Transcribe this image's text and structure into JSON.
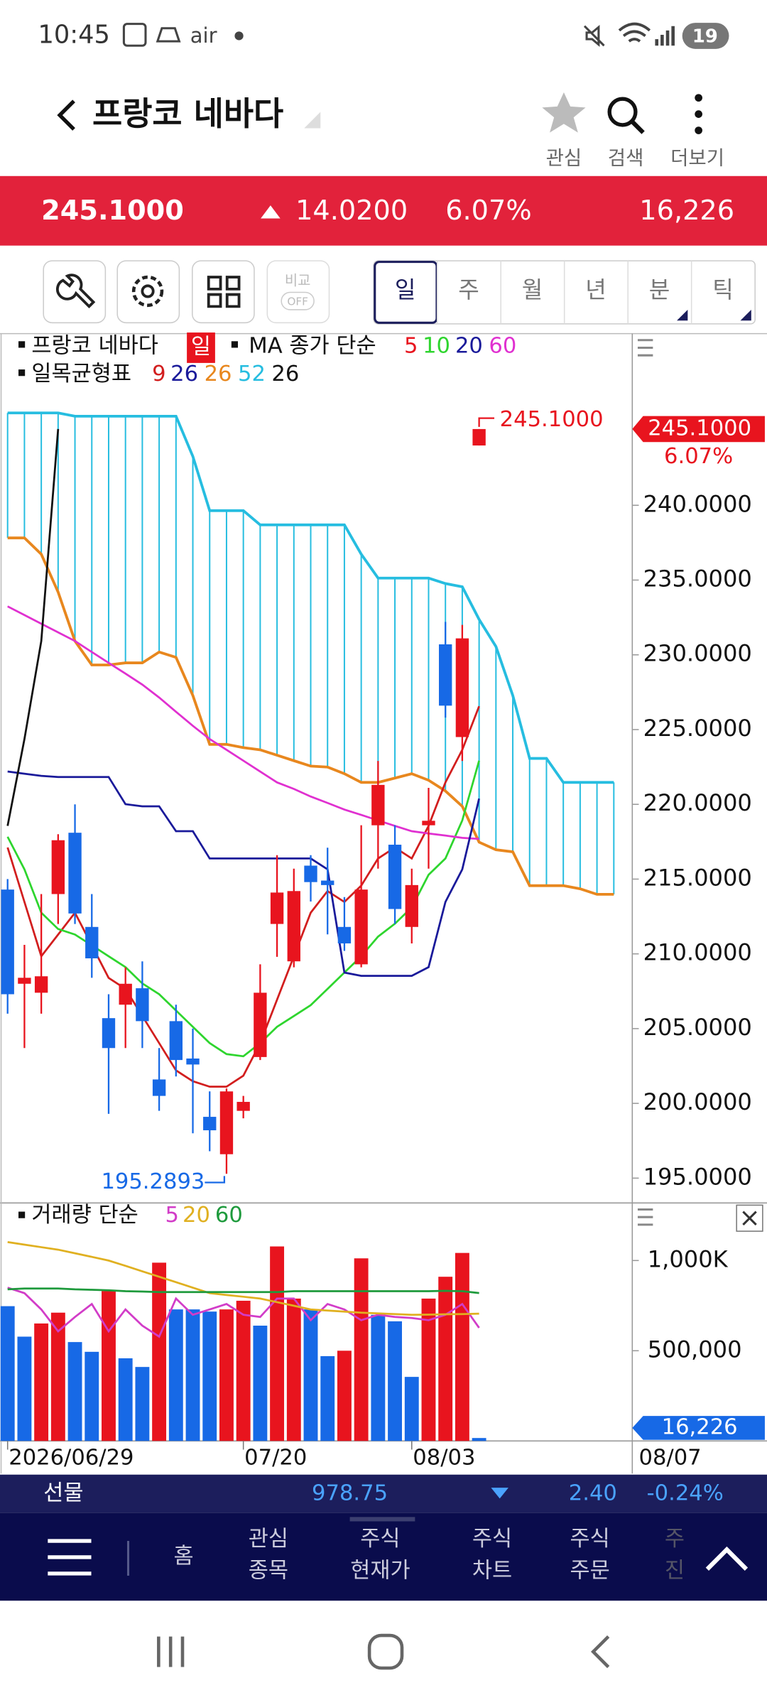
{
  "status": {
    "time": "10:45",
    "carrier": "air",
    "battery": "19"
  },
  "header": {
    "title": "프랑코 네바다",
    "actions": [
      "관심",
      "검색",
      "더보기"
    ]
  },
  "quote": {
    "price": "245.1000",
    "change": "14.0200",
    "change_pct": "6.07%",
    "volume": "16,226"
  },
  "toolbar": {
    "compare": "비교",
    "compare_state": "OFF",
    "periods": [
      "일",
      "주",
      "월",
      "년",
      "분",
      "틱"
    ]
  },
  "legend": {
    "name": "프랑코 네바다",
    "period": "일",
    "ma_label": "MA 종가 단순",
    "ma_periods": [
      "5",
      "10",
      "20",
      "60"
    ],
    "ichimoku_label": "일목균형표",
    "ichimoku_periods": [
      "9",
      "26",
      "26",
      "52",
      "26"
    ],
    "volume_label": "거래량 단순",
    "volume_periods": [
      "5",
      "20",
      "60"
    ]
  },
  "chart_data": {
    "type": "candlestick",
    "categories": [
      "2026/06/29",
      null,
      null,
      null,
      null,
      null,
      null,
      null,
      null,
      null,
      null,
      null,
      null,
      null,
      "07/20",
      null,
      null,
      null,
      null,
      null,
      null,
      null,
      null,
      null,
      "08/03",
      null,
      null,
      null,
      null,
      null,
      null,
      null,
      null,
      null,
      null,
      null,
      null
    ],
    "open": [
      214.3,
      208.0,
      207.4,
      214.0,
      218.1,
      211.8,
      205.7,
      206.6,
      207.7,
      201.6,
      205.5,
      203.0,
      199.1,
      196.6,
      199.5,
      203.1,
      212.0,
      209.5,
      215.9,
      214.9,
      211.8,
      209.3,
      218.6,
      217.3,
      211.8,
      218.6,
      230.7,
      224.5,
      244.0,
      null,
      null,
      null,
      null,
      null,
      null,
      null,
      null
    ],
    "high": [
      215.0,
      210.6,
      214.0,
      218.0,
      220.0,
      214.0,
      207.3,
      209.1,
      209.5,
      203.7,
      206.6,
      205.0,
      200.8,
      201.0,
      200.5,
      209.3,
      216.6,
      215.7,
      216.6,
      217.1,
      213.8,
      218.6,
      222.9,
      218.6,
      215.7,
      221.1,
      232.2,
      232.0,
      245.1,
      null,
      null,
      null,
      null,
      null,
      null,
      null,
      null
    ],
    "low": [
      206.0,
      203.7,
      206.0,
      212.0,
      212.0,
      208.4,
      199.3,
      203.7,
      203.7,
      199.5,
      201.8,
      198.0,
      196.8,
      195.2893,
      199.0,
      202.9,
      209.8,
      209.1,
      213.5,
      211.3,
      210.2,
      209.1,
      215.7,
      212.0,
      210.7,
      215.7,
      225.8,
      222.9,
      244.0,
      null,
      null,
      null,
      null,
      null,
      null,
      null,
      null
    ],
    "close": [
      207.3,
      208.4,
      208.5,
      217.6,
      212.7,
      209.7,
      203.7,
      208.0,
      205.5,
      200.5,
      202.9,
      202.6,
      198.2,
      200.8,
      200.1,
      207.4,
      214.1,
      214.2,
      214.8,
      214.6,
      210.7,
      214.3,
      221.3,
      213.0,
      214.6,
      218.9,
      226.6,
      231.1,
      245.1,
      null,
      null,
      null,
      null,
      null,
      null,
      null,
      null
    ],
    "up_color": "#e8141e",
    "down_color": "#1769e6",
    "ylim": [
      193.34,
      251.41
    ],
    "yticks": [
      {
        "value": 195,
        "label": "195.0000"
      },
      {
        "value": 200,
        "label": "200.0000"
      },
      {
        "value": 205,
        "label": "205.0000"
      },
      {
        "value": 210,
        "label": "210.0000"
      },
      {
        "value": 215,
        "label": "215.0000"
      },
      {
        "value": 220,
        "label": "220.0000"
      },
      {
        "value": 225,
        "label": "225.0000"
      },
      {
        "value": 230,
        "label": "230.0000"
      },
      {
        "value": 235,
        "label": "235.0000"
      },
      {
        "value": 240,
        "label": "240.0000"
      }
    ],
    "lines": [
      {
        "name": "MA5",
        "color": "#d21e1e",
        "values": [
          217.11,
          213.47,
          209.84,
          211.29,
          212.75,
          210.57,
          208.39,
          207.66,
          205.84,
          204.03,
          202.21,
          201.48,
          201.12,
          201.12,
          201.85,
          204.03,
          206.93,
          209.84,
          212.75,
          214.2,
          213.47,
          214.56,
          216.38,
          217.11,
          216.38,
          218.56,
          221.47,
          223.65,
          226.56,
          null,
          null,
          null,
          null,
          null,
          null,
          null,
          null
        ]
      },
      {
        "name": "MA10",
        "color": "#2ed52e",
        "values": [
          217.83,
          215.65,
          212.75,
          211.66,
          211.29,
          210.57,
          209.84,
          209.11,
          208.02,
          207.3,
          206.21,
          205.12,
          204.03,
          203.3,
          203.15,
          204.03,
          205.12,
          205.84,
          206.57,
          207.66,
          208.75,
          209.84,
          211.15,
          212.02,
          213.11,
          215.29,
          216.38,
          218.92,
          222.92,
          null,
          null,
          null,
          null,
          null,
          null,
          null,
          null
        ]
      },
      {
        "name": "MA60",
        "color": "#e030d0",
        "values": [
          233.24,
          232.66,
          232.08,
          231.5,
          230.92,
          230.19,
          229.46,
          228.74,
          228.01,
          227.14,
          226.19,
          225.25,
          224.37,
          223.65,
          222.92,
          222.19,
          221.47,
          221.03,
          220.52,
          220.09,
          219.65,
          219.29,
          218.92,
          218.56,
          218.2,
          218.05,
          217.91,
          217.76,
          217.69,
          null,
          null,
          null,
          null,
          null,
          null,
          null,
          null
        ]
      },
      {
        "name": "기준선",
        "color": "#1a1a9a",
        "values": [
          222.19,
          222.05,
          221.9,
          221.83,
          221.83,
          221.83,
          221.83,
          220.01,
          219.87,
          219.87,
          218.2,
          218.2,
          216.38,
          216.38,
          216.38,
          216.38,
          216.38,
          216.38,
          216.38,
          215.65,
          208.75,
          208.53,
          208.53,
          208.53,
          208.53,
          209.11,
          213.47,
          215.65,
          220.38,
          null,
          null,
          null,
          null,
          null,
          null,
          null,
          null
        ]
      },
      {
        "name": "후행스팬",
        "color": "#111111",
        "values": [
          218.56,
          224.37,
          230.92,
          245.1,
          null,
          null,
          null,
          null,
          null,
          null,
          null,
          null,
          null,
          null,
          null,
          null,
          null,
          null,
          null,
          null,
          null,
          null,
          null,
          null,
          null,
          null,
          null,
          null,
          null,
          null,
          null,
          null,
          null,
          null,
          null,
          null,
          null
        ]
      }
    ],
    "cloud": {
      "top_color": "#26bde0",
      "bottom_color": "#e8871e",
      "span_top": [
        246.18,
        246.18,
        246.18,
        246.18,
        245.96,
        245.96,
        245.96,
        245.96,
        245.96,
        245.96,
        245.96,
        243.27,
        239.64,
        239.64,
        239.64,
        238.69,
        238.69,
        238.69,
        238.69,
        238.69,
        238.69,
        236.73,
        235.13,
        235.13,
        235.13,
        235.13,
        234.77,
        234.55,
        232.37,
        230.55,
        227.28,
        223.07,
        223.07,
        221.47,
        221.47,
        221.47,
        221.47
      ],
      "span_bottom": [
        237.82,
        237.82,
        236.73,
        234.19,
        230.92,
        229.32,
        229.32,
        229.46,
        229.46,
        230.19,
        229.83,
        227.28,
        224.01,
        224.01,
        223.79,
        223.65,
        223.28,
        222.92,
        222.56,
        222.49,
        222.05,
        221.47,
        221.47,
        221.76,
        222.05,
        221.61,
        220.89,
        219.87,
        217.47,
        216.96,
        216.82,
        214.56,
        214.56,
        214.56,
        214.35,
        213.98,
        213.98
      ]
    },
    "annotations": {
      "high": "245.1000",
      "low": "195.2893",
      "last_price": "245.1000",
      "last_pct": "6.07%",
      "current_date": "08/07"
    },
    "volume": {
      "values": [
        747000,
        578000,
        651000,
        711000,
        548000,
        494000,
        831000,
        458000,
        410000,
        988000,
        729000,
        729000,
        717000,
        729000,
        777000,
        639000,
        1078000,
        789000,
        729000,
        470000,
        500000,
        1012000,
        699000,
        663000,
        355000,
        789000,
        910000,
        1042000,
        16226,
        null,
        null,
        null,
        null,
        null,
        null,
        null,
        null
      ],
      "colors": [
        "#1769e6",
        "#1769e6",
        "#e8141e",
        "#e8141e",
        "#1769e6",
        "#1769e6",
        "#e8141e",
        "#1769e6",
        "#1769e6",
        "#e8141e",
        "#1769e6",
        "#1769e6",
        "#1769e6",
        "#e8141e",
        "#e8141e",
        "#1769e6",
        "#e8141e",
        "#e8141e",
        "#1769e6",
        "#1769e6",
        "#e8141e",
        "#e8141e",
        "#1769e6",
        "#1769e6",
        "#1769e6",
        "#e8141e",
        "#e8141e",
        "#e8141e",
        "#1769e6",
        null,
        null,
        null,
        null,
        null,
        null,
        null,
        null
      ],
      "ylim": [
        0,
        1313000
      ],
      "yticks": [
        {
          "value": 500000,
          "label": "500,000"
        },
        {
          "value": 1000000,
          "label": "1,000K"
        }
      ],
      "last_label": "16,226",
      "lines": [
        {
          "name": "5",
          "color": "#d23cc8",
          "values": [
            849000,
            819000,
            729000,
            608000,
            687000,
            759000,
            608000,
            729000,
            639000,
            578000,
            789000,
            699000,
            729000,
            759000,
            699000,
            687000,
            789000,
            789000,
            669000,
            759000,
            729000,
            669000,
            699000,
            687000,
            681000,
            669000,
            699000,
            759000,
            627000,
            null,
            null,
            null,
            null,
            null,
            null,
            null,
            null
          ]
        },
        {
          "name": "20",
          "color": "#e0b020",
          "values": [
            1102000,
            1088000,
            1074000,
            1060000,
            1040000,
            1020000,
            1000000,
            970000,
            940000,
            910000,
            880000,
            849000,
            819000,
            809000,
            799000,
            789000,
            769000,
            749000,
            729000,
            723000,
            717000,
            711000,
            707000,
            703000,
            699000,
            700000,
            702000,
            703000,
            705000,
            null,
            null,
            null,
            null,
            null,
            null,
            null,
            null
          ]
        },
        {
          "name": "60",
          "color": "#1e9a3c",
          "values": [
            840000,
            845000,
            845000,
            845000,
            840000,
            838000,
            835000,
            830000,
            828000,
            825000,
            825000,
            825000,
            825000,
            825000,
            825000,
            825000,
            825000,
            830000,
            830000,
            830000,
            830000,
            830000,
            830000,
            830000,
            830000,
            830000,
            832000,
            830000,
            820000,
            null,
            null,
            null,
            null,
            null,
            null,
            null,
            null
          ]
        }
      ]
    }
  },
  "futures": {
    "label": "선물",
    "price": "978.75",
    "change": "2.40",
    "change_pct": "-0.24%"
  },
  "nav": {
    "home": "홈",
    "items": [
      [
        "관심",
        "종목"
      ],
      [
        "주식",
        "현재가"
      ],
      [
        "주식",
        "차트"
      ],
      [
        "주식",
        "주문"
      ],
      [
        "주",
        "진"
      ]
    ]
  }
}
